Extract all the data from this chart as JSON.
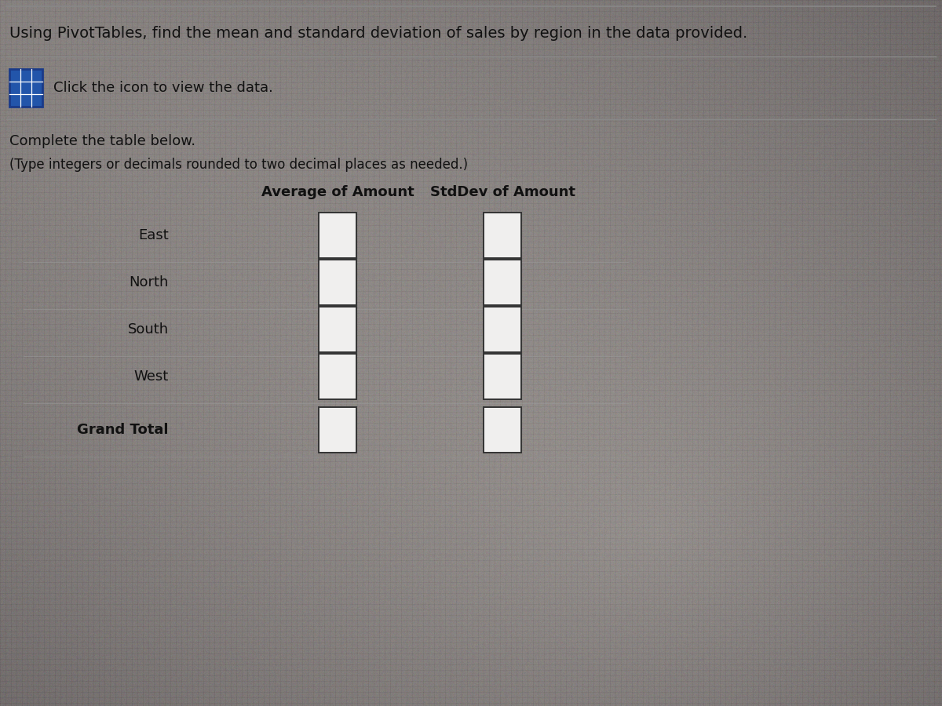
{
  "title_line1": "Using PivotTables, find the mean and standard deviation of sales by region in the data provided.",
  "icon_text": "Click the icon to view the data.",
  "instruction_line1": "Complete the table below.",
  "instruction_line2": "(Type integers or decimals rounded to two decimal places as needed.)",
  "col_header1": "Average of Amount",
  "col_header2": "StdDev of Amount",
  "row_labels": [
    "East",
    "North",
    "South",
    "West",
    "Grand Total"
  ],
  "bg_base_color": [
    0.72,
    0.7,
    0.68
  ],
  "bg_dark_color": [
    0.42,
    0.4,
    0.4
  ],
  "text_color": "#111111",
  "box_color": "#f0efee",
  "box_edge_color": "#333333",
  "line_color": "#888888",
  "title_fontsize": 14,
  "label_fontsize": 13,
  "header_fontsize": 13,
  "icon_blue": "#2255aa",
  "icon_border": "#1a3a88"
}
